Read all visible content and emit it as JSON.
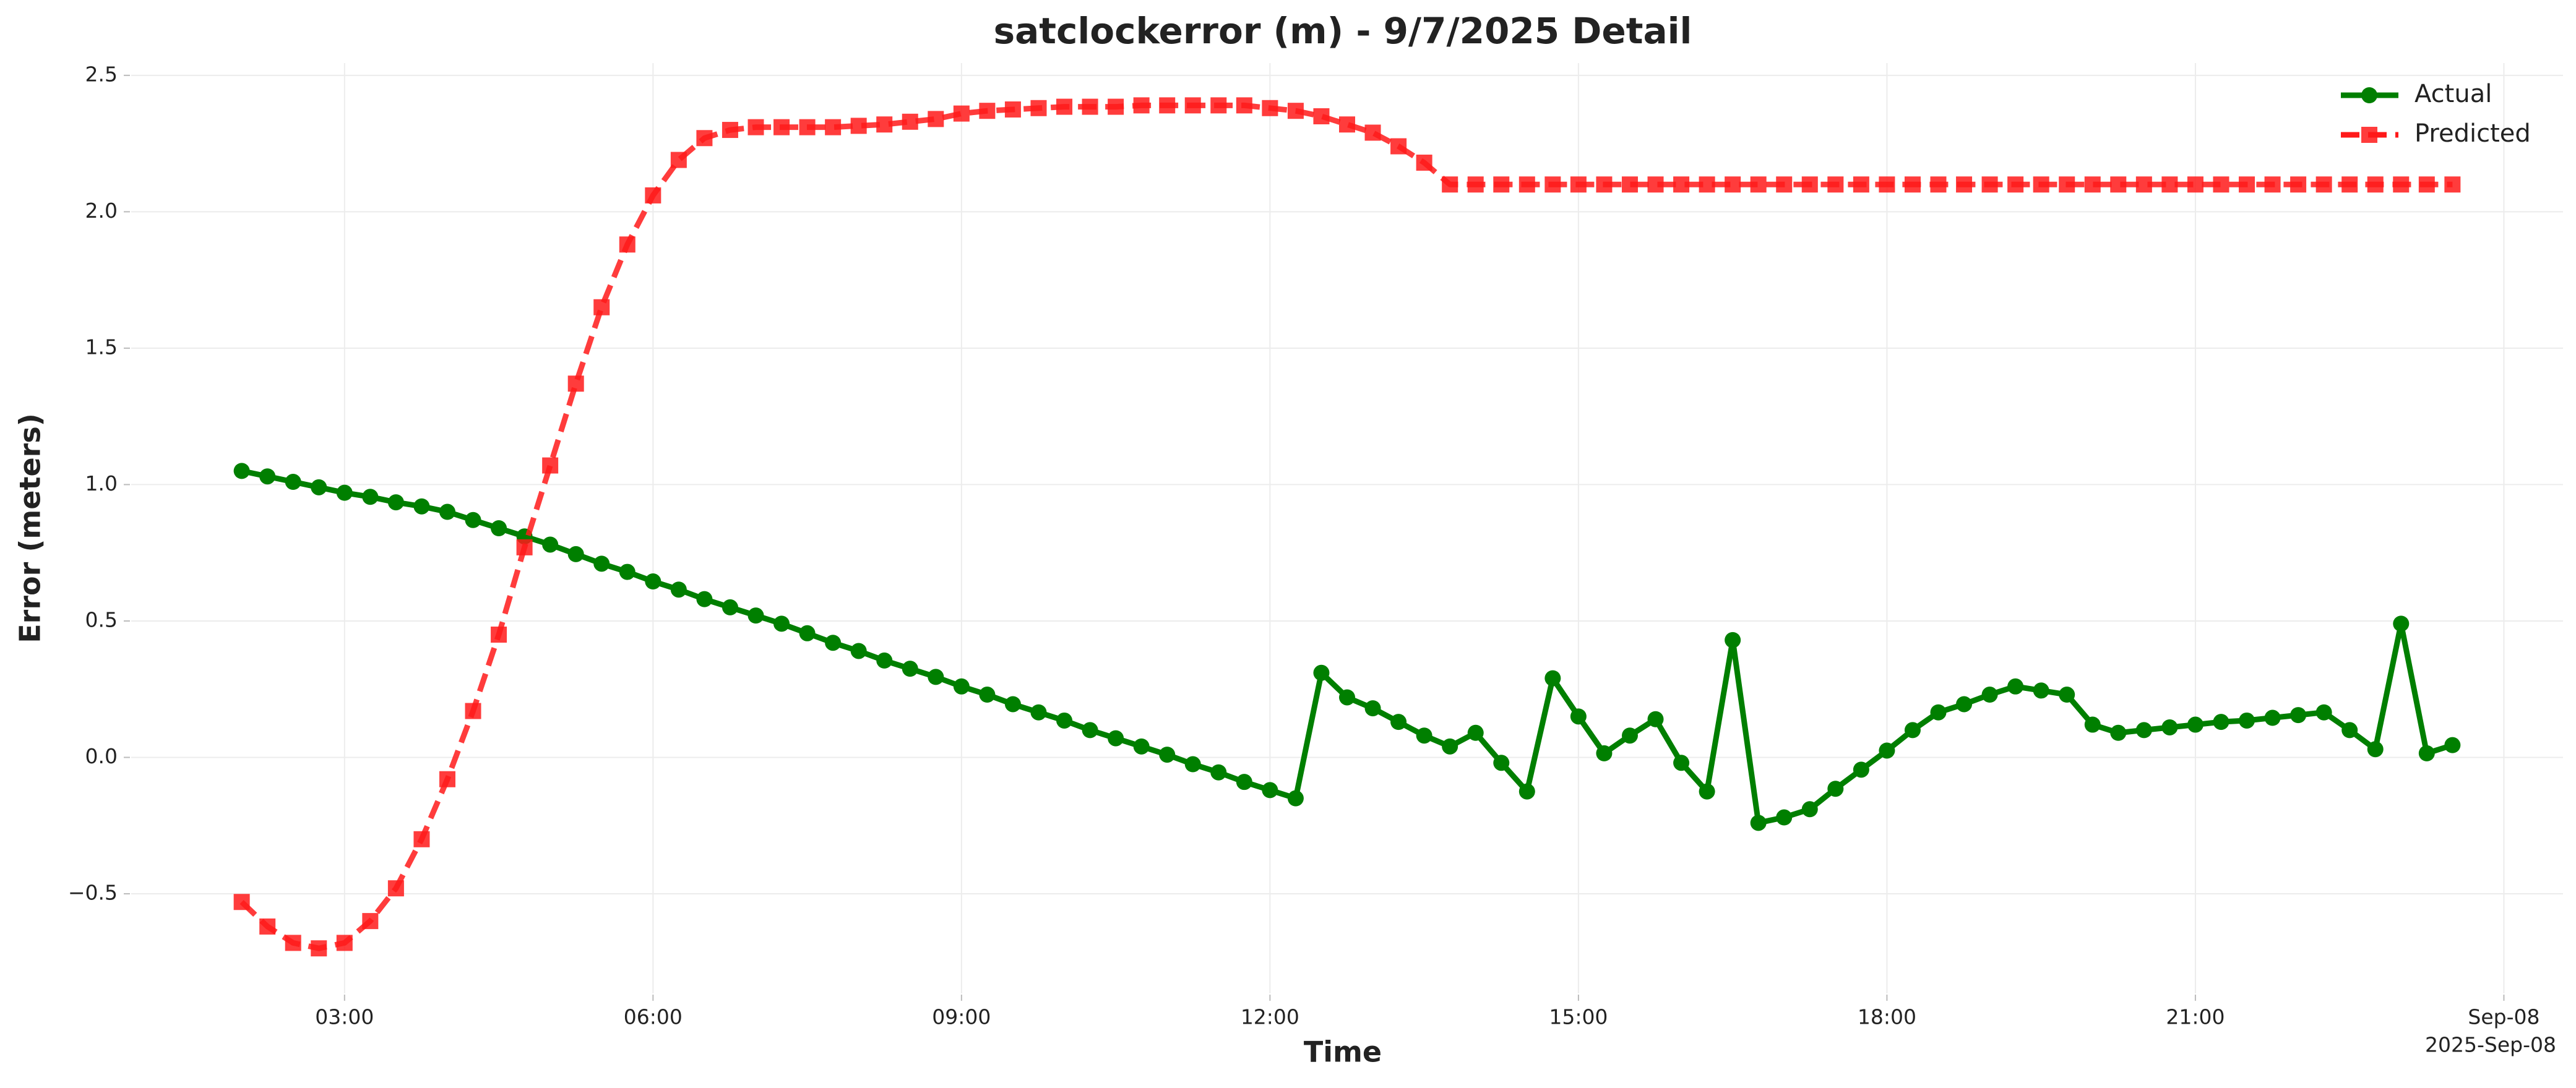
{
  "chart_data": {
    "type": "line",
    "title": "satclockerror (m) - 9/7/2025 Detail",
    "xlabel": "Time",
    "ylabel": "Error (meters)",
    "x_offset_label": "2025-Sep-08",
    "x": [
      2,
      2.25,
      2.5,
      2.75,
      3,
      3.25,
      3.5,
      3.75,
      4,
      4.25,
      4.5,
      4.75,
      5,
      5.25,
      5.5,
      5.75,
      6,
      6.25,
      6.5,
      6.75,
      7,
      7.25,
      7.5,
      7.75,
      8,
      8.25,
      8.5,
      8.75,
      9,
      9.25,
      9.5,
      9.75,
      10,
      10.25,
      10.5,
      10.75,
      11,
      11.25,
      11.5,
      11.75,
      12,
      12.25,
      12.5,
      12.75,
      13,
      13.25,
      13.5,
      13.75,
      14,
      14.25,
      14.5,
      14.75,
      15,
      15.25,
      15.5,
      15.75,
      16,
      16.25,
      16.5,
      16.75,
      17,
      17.25,
      17.5,
      17.75,
      18,
      18.25,
      18.5,
      18.75,
      19,
      19.25,
      19.5,
      19.75,
      20,
      20.25,
      20.5,
      20.75,
      21,
      21.25,
      21.5,
      21.75,
      22,
      22.25,
      22.5,
      22.75,
      23,
      23.25,
      23.5
    ],
    "series": [
      {
        "name": "Actual",
        "color": "#007f00",
        "marker": "circle",
        "dashed": false,
        "values": [
          1.05,
          1.03,
          1.01,
          0.99,
          0.97,
          0.955,
          0.935,
          0.92,
          0.9,
          0.87,
          0.84,
          0.81,
          0.78,
          0.745,
          0.71,
          0.68,
          0.645,
          0.615,
          0.58,
          0.55,
          0.52,
          0.49,
          0.455,
          0.42,
          0.39,
          0.355,
          0.325,
          0.295,
          0.26,
          0.23,
          0.195,
          0.165,
          0.135,
          0.1,
          0.07,
          0.04,
          0.01,
          -0.025,
          -0.055,
          -0.09,
          -0.12,
          -0.15,
          0.31,
          0.22,
          0.18,
          0.13,
          0.08,
          0.04,
          0.09,
          -0.02,
          -0.125,
          0.29,
          0.15,
          0.015,
          0.08,
          0.14,
          -0.02,
          -0.125,
          0.43,
          -0.24,
          -0.22,
          -0.19,
          -0.115,
          -0.045,
          0.025,
          0.1,
          0.165,
          0.195,
          0.23,
          0.26,
          0.245,
          0.23,
          0.12,
          0.09,
          0.1,
          0.11,
          0.12,
          0.13,
          0.135,
          0.145,
          0.155,
          0.165,
          0.1,
          0.03,
          0.49,
          0.015,
          0.045
        ]
      },
      {
        "name": "Predicted",
        "color": "#ff1a1a",
        "marker": "square",
        "dashed": true,
        "values": [
          -0.53,
          -0.62,
          -0.68,
          -0.7,
          -0.68,
          -0.6,
          -0.48,
          -0.3,
          -0.08,
          0.17,
          0.45,
          0.77,
          1.07,
          1.37,
          1.65,
          1.88,
          2.06,
          2.19,
          2.27,
          2.3,
          2.31,
          2.31,
          2.31,
          2.31,
          2.315,
          2.32,
          2.33,
          2.34,
          2.36,
          2.37,
          2.375,
          2.38,
          2.385,
          2.385,
          2.385,
          2.39,
          2.39,
          2.39,
          2.39,
          2.39,
          2.38,
          2.37,
          2.35,
          2.32,
          2.29,
          2.24,
          2.18,
          2.1,
          2.1,
          2.1,
          2.1,
          2.1,
          2.1,
          2.1,
          2.1,
          2.1,
          2.1,
          2.1,
          2.1,
          2.1,
          2.1,
          2.1,
          2.1,
          2.1,
          2.1,
          2.1,
          2.1,
          2.1,
          2.1,
          2.1,
          2.1,
          2.1,
          2.1,
          2.1,
          2.1,
          2.1,
          2.1,
          2.1,
          2.1,
          2.1,
          2.1,
          2.1,
          2.1,
          2.1,
          2.1,
          2.1,
          2.1
        ]
      }
    ],
    "xlim": [
      0.925,
      24.575
    ],
    "xticks": [
      {
        "value": 3,
        "label": "03:00"
      },
      {
        "value": 6,
        "label": "06:00"
      },
      {
        "value": 9,
        "label": "09:00"
      },
      {
        "value": 12,
        "label": "12:00"
      },
      {
        "value": 15,
        "label": "15:00"
      },
      {
        "value": 18,
        "label": "18:00"
      },
      {
        "value": 21,
        "label": "21:00"
      },
      {
        "value": 24,
        "label": "Sep-08"
      }
    ],
    "ylim": [
      -0.865,
      2.545
    ],
    "yticks": [
      {
        "value": -0.5,
        "label": "−0.5"
      },
      {
        "value": 0,
        "label": "0.0"
      },
      0.5,
      {
        "value": 1,
        "label": "1.0"
      },
      1.5,
      {
        "value": 2,
        "label": "2.0"
      },
      2.5
    ],
    "grid": true,
    "legend": "upper right"
  }
}
